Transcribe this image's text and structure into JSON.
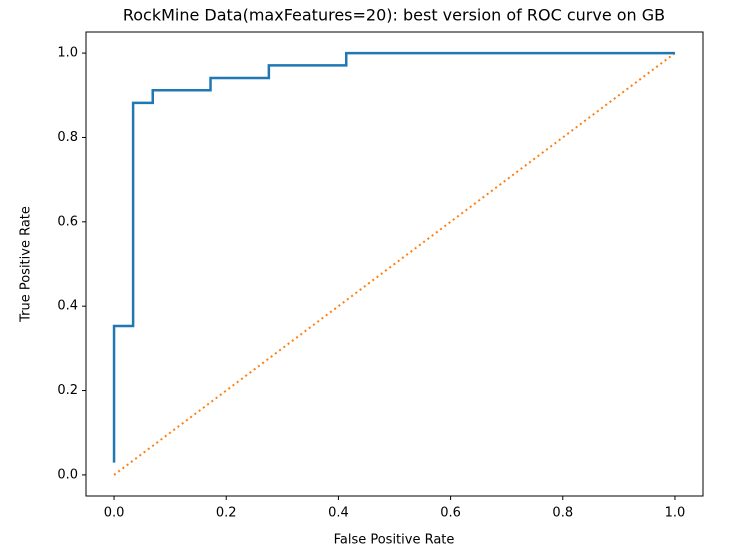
{
  "chart_data": {
    "type": "line",
    "title": "RockMine Data(maxFeatures=20): best version of ROC curve on GB",
    "x_label": "False Positive Rate",
    "y_label": "True Positive Rate",
    "series": [
      {
        "color": "#1f77b4",
        "style": "solid",
        "x": [
          0,
          0,
          0.034,
          0.034,
          0.069,
          0.069,
          0.172,
          0.172,
          0.276,
          0.276,
          0.414,
          0.414,
          1.0
        ],
        "values": [
          0.029,
          0.353,
          0.353,
          0.882,
          0.882,
          0.912,
          0.912,
          0.941,
          0.941,
          0.971,
          0.971,
          1.0,
          1.0
        ]
      },
      {
        "color": "#ff7f0e",
        "style": "dotted",
        "x": [
          0,
          1
        ],
        "values": [
          0,
          1
        ]
      }
    ],
    "xlim": [
      -0.05,
      1.05
    ],
    "ylim": [
      -0.05,
      1.05
    ],
    "xticks": [
      {
        "value": 0,
        "label": "0.0"
      },
      0.2,
      0.4,
      0.6,
      0.8,
      {
        "value": 1,
        "label": "1.0"
      }
    ],
    "yticks": [
      {
        "value": 0,
        "label": "0.0"
      },
      0.2,
      0.4,
      0.6,
      0.8,
      {
        "value": 1,
        "label": "1.0"
      }
    ],
    "grid": false
  }
}
